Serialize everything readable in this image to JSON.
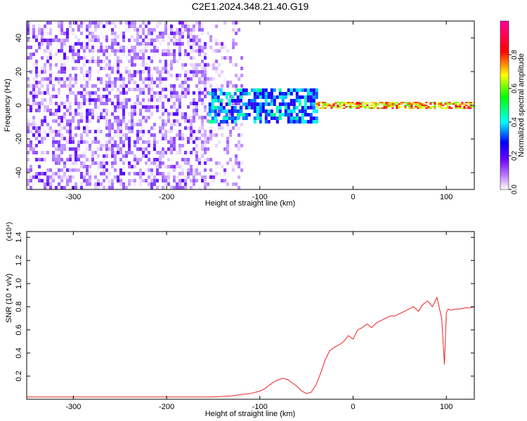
{
  "title": "C2E1.2024.348.21.40.G19",
  "chart_data": [
    {
      "type": "heatmap",
      "xlabel": "Height of straight line (km)",
      "ylabel": "Frequency (Hz)",
      "xlim": [
        -350,
        130
      ],
      "ylim": [
        -50,
        50
      ],
      "xticks": [
        -300,
        -200,
        -100,
        0,
        100
      ],
      "yticks": [
        -40,
        -20,
        0,
        20,
        40
      ],
      "colorbar": {
        "label": "Normalized spectral amplitude",
        "range": [
          0.0,
          1.0
        ],
        "ticks": [
          0.0,
          0.2,
          0.4,
          0.6,
          0.8
        ],
        "colormap": [
          "#ffffff",
          "#6a00ff",
          "#0000ff",
          "#00ffff",
          "#00ff00",
          "#ffff00",
          "#ff0000",
          "#ff00aa"
        ]
      },
      "regions": [
        {
          "x": [
            -350,
            -160
          ],
          "freq": [
            -50,
            50
          ],
          "amplitude": [
            0.0,
            0.2
          ]
        },
        {
          "x": [
            -160,
            -120
          ],
          "freq": [
            -50,
            50
          ],
          "amplitude": [
            0.0,
            0.15
          ]
        },
        {
          "x": [
            -155,
            -40
          ],
          "freq": [
            -10,
            10
          ],
          "amplitude": [
            0.2,
            0.5
          ]
        },
        {
          "x": [
            -40,
            130
          ],
          "freq": [
            -2,
            2
          ],
          "amplitude": [
            0.6,
            0.9
          ]
        }
      ]
    },
    {
      "type": "line",
      "xlabel": "Height of straight line (km)",
      "ylabel": "SNR (10 * v/v)",
      "y_scale_label": "(x10⁴)",
      "xlim": [
        -350,
        130
      ],
      "ylim": [
        0,
        1.45
      ],
      "xticks": [
        -300,
        -200,
        -100,
        0,
        100
      ],
      "yticks": [
        0.2,
        0.4,
        0.6,
        0.8,
        1.0,
        1.2,
        1.4
      ],
      "color": "#ee2222",
      "series": [
        {
          "x": [
            -350,
            -300,
            -250,
            -200,
            -170,
            -150,
            -130,
            -120,
            -110,
            -100,
            -95,
            -90,
            -85,
            -80,
            -75,
            -70,
            -65,
            -60,
            -55,
            -50,
            -45,
            -40,
            -35,
            -30,
            -25,
            -20,
            -15,
            -10,
            -5,
            0,
            5,
            10,
            15,
            20,
            25,
            30,
            35,
            40,
            45,
            50,
            55,
            60,
            65,
            70,
            75,
            80,
            85,
            90,
            95,
            98,
            100,
            102,
            105,
            110,
            115,
            120,
            125,
            130
          ],
          "y": [
            0.02,
            0.02,
            0.02,
            0.02,
            0.02,
            0.02,
            0.03,
            0.04,
            0.05,
            0.07,
            0.09,
            0.12,
            0.15,
            0.17,
            0.18,
            0.17,
            0.14,
            0.11,
            0.07,
            0.05,
            0.06,
            0.12,
            0.22,
            0.34,
            0.42,
            0.45,
            0.47,
            0.5,
            0.55,
            0.52,
            0.6,
            0.62,
            0.65,
            0.62,
            0.66,
            0.68,
            0.7,
            0.72,
            0.72,
            0.74,
            0.76,
            0.78,
            0.8,
            0.76,
            0.82,
            0.85,
            0.8,
            0.88,
            0.7,
            0.3,
            0.75,
            0.78,
            0.77,
            0.78,
            0.78,
            0.79,
            0.79,
            0.8
          ]
        }
      ]
    }
  ]
}
